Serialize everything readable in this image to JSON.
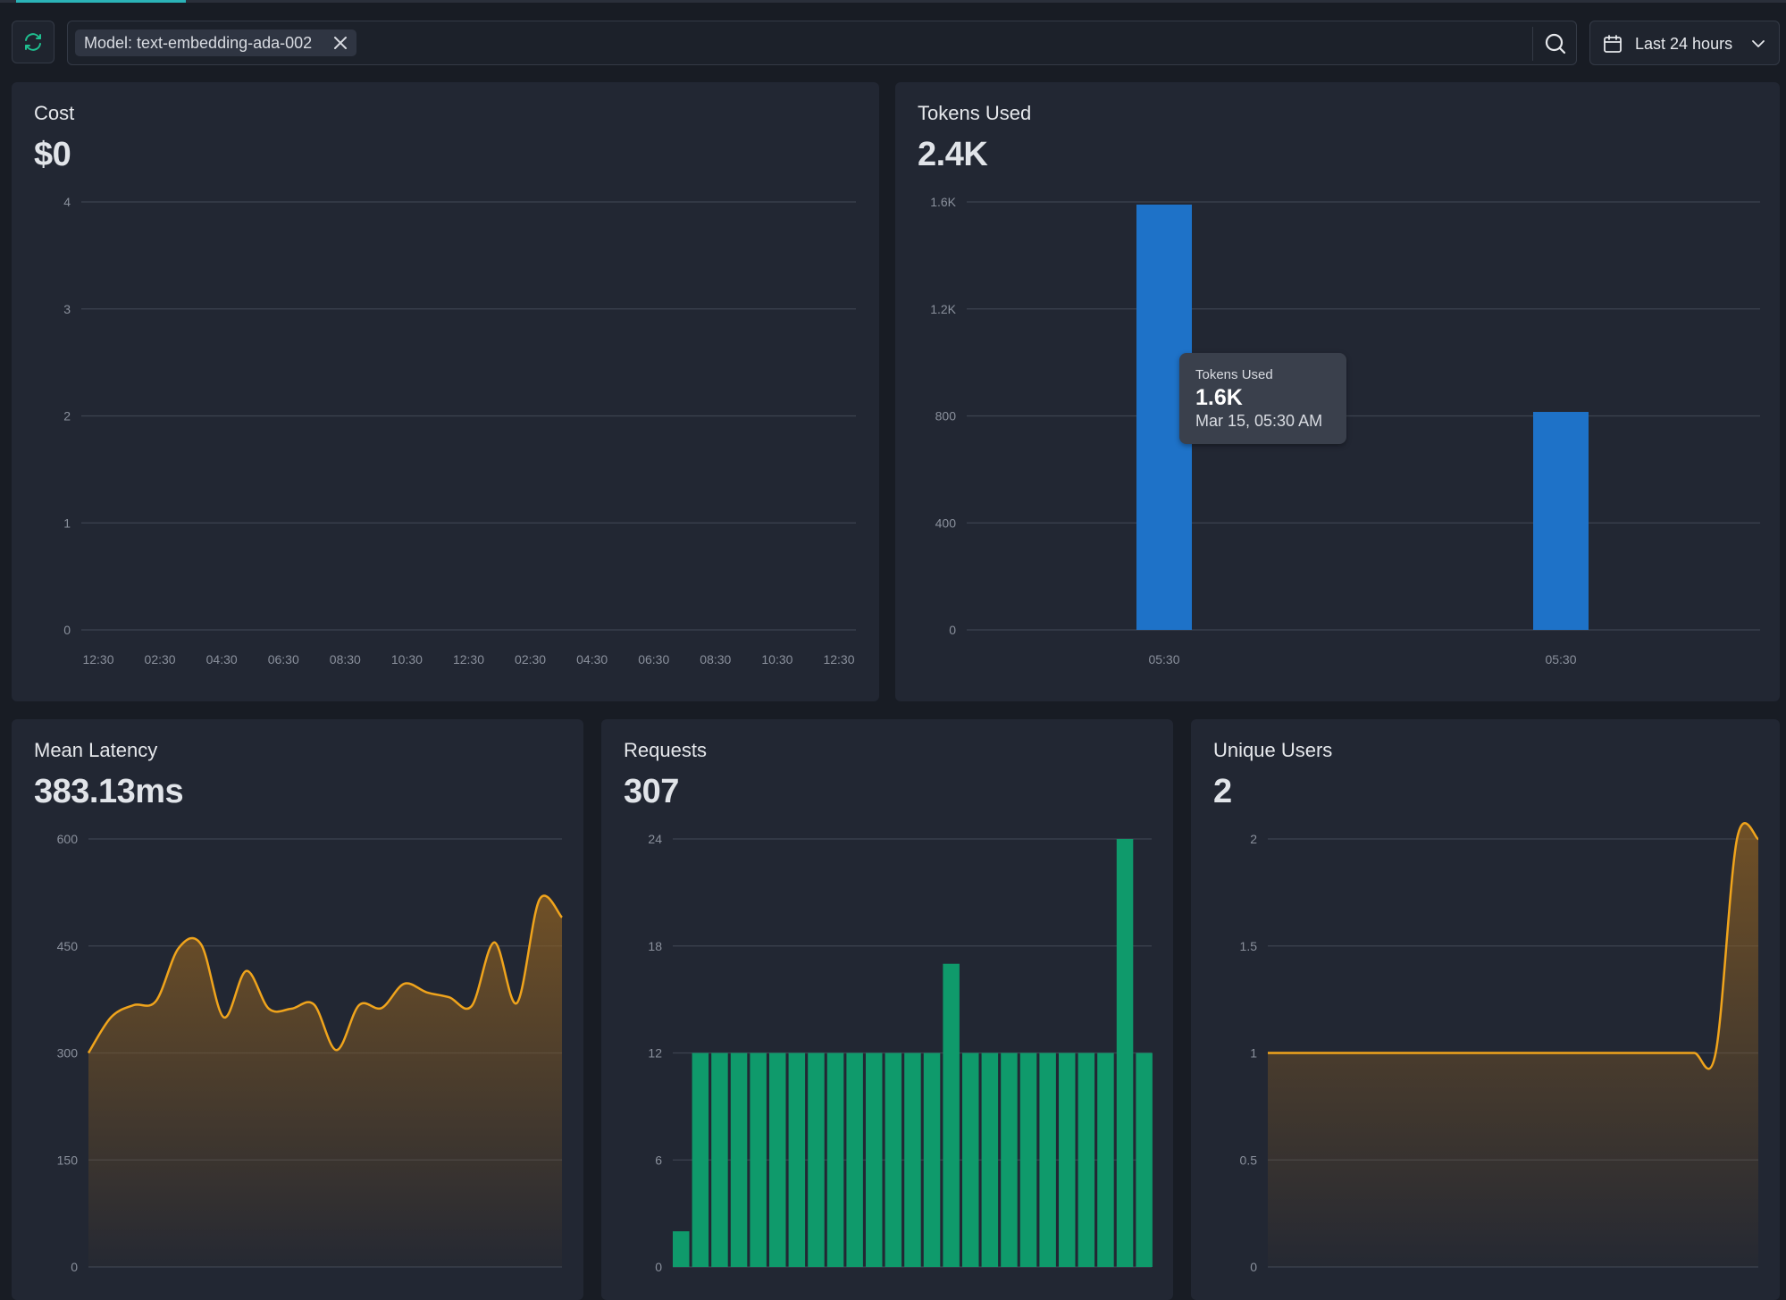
{
  "toolbar": {
    "filter_chip_label": "Model: text-embedding-ada-002",
    "date_range_label": "Last 24 hours"
  },
  "colors": {
    "accent_teal": "#2bb3b8",
    "bar_blue": "#1e72c8",
    "bar_green": "#0f9a6b",
    "line_orange": "#f0a41c"
  },
  "cost": {
    "title": "Cost",
    "value": "$0",
    "chart_data": {
      "type": "line",
      "ylim": [
        0,
        4
      ],
      "y_ticks": [
        "4",
        "3",
        "2",
        "1",
        "0"
      ],
      "x_ticks": [
        "12:30",
        "02:30",
        "04:30",
        "06:30",
        "08:30",
        "10:30",
        "12:30",
        "02:30",
        "04:30",
        "06:30",
        "08:30",
        "10:30",
        "12:30"
      ],
      "series": []
    }
  },
  "tokens": {
    "title": "Tokens Used",
    "value": "2.4K",
    "chart_data": {
      "type": "bar",
      "ylim": [
        0,
        1600
      ],
      "y_ticks": [
        "1.6K",
        "1.2K",
        "800",
        "400",
        "0"
      ],
      "categories": [
        "05:30",
        "05:30"
      ],
      "values": [
        1590,
        815
      ]
    },
    "tooltip": {
      "label": "Tokens Used",
      "value": "1.6K",
      "date": "Mar 15, 05:30 AM"
    }
  },
  "latency": {
    "title": "Mean Latency",
    "value": "383.13ms",
    "chart_data": {
      "type": "area",
      "ylim": [
        0,
        600
      ],
      "y_ticks": [
        "600",
        "450",
        "300",
        "150",
        "0"
      ],
      "values": [
        300,
        350,
        367,
        373,
        447,
        452,
        350,
        415,
        362,
        362,
        368,
        304,
        367,
        363,
        397,
        385,
        378,
        366,
        455,
        370,
        515,
        490
      ]
    }
  },
  "requests": {
    "title": "Requests",
    "value": "307",
    "chart_data": {
      "type": "bar",
      "ylim": [
        0,
        24
      ],
      "y_ticks": [
        "24",
        "18",
        "12",
        "6",
        "0"
      ],
      "values": [
        2,
        12,
        12,
        12,
        12,
        12,
        12,
        12,
        12,
        12,
        12,
        12,
        12,
        12,
        17,
        12,
        12,
        12,
        12,
        12,
        12,
        12,
        12,
        24,
        12
      ]
    }
  },
  "users": {
    "title": "Unique Users",
    "value": "2",
    "chart_data": {
      "type": "area",
      "ylim": [
        0,
        2
      ],
      "y_ticks": [
        "2",
        "1.5",
        "1",
        "0.5",
        "0"
      ],
      "values": [
        1,
        1,
        1,
        1,
        1,
        1,
        1,
        1,
        1,
        1,
        1,
        1,
        1,
        1,
        1,
        1,
        1,
        1,
        1,
        1,
        1,
        1,
        2,
        2
      ]
    }
  }
}
